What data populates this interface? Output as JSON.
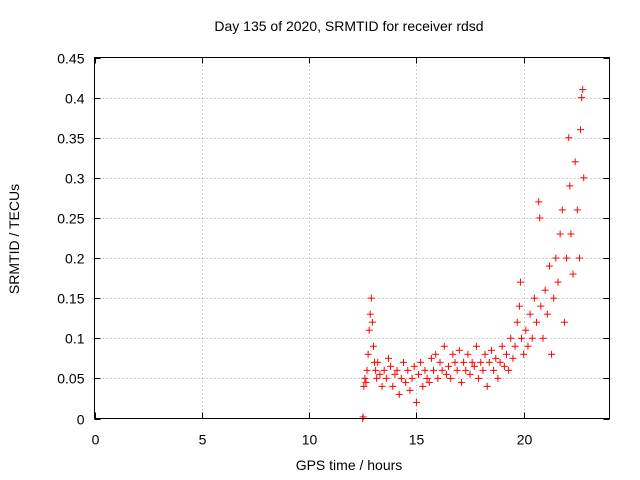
{
  "chart_data": {
    "type": "scatter",
    "title": "Day 135 of 2020, SRMTID for receiver rdsd",
    "xlabel": "GPS time / hours",
    "ylabel": "SRMTID / TECUs",
    "xlim": [
      0,
      24
    ],
    "ylim": [
      0,
      0.45
    ],
    "xticks": [
      0,
      5,
      10,
      15,
      20
    ],
    "xtick_labels": [
      "0",
      "5",
      "10",
      "15",
      "20"
    ],
    "yticks": [
      0,
      0.05,
      0.1,
      0.15,
      0.2,
      0.25,
      0.3,
      0.35,
      0.4,
      0.45
    ],
    "ytick_labels": [
      "0",
      "0.05",
      "0.1",
      "0.15",
      "0.2",
      "0.25",
      "0.3",
      "0.35",
      "0.4",
      "0.45"
    ],
    "grid": true,
    "marker": "+",
    "color": "#ff0000",
    "series": [
      {
        "name": "SRMTID",
        "points": [
          [
            12.5,
            0.0
          ],
          [
            12.52,
            0.002
          ],
          [
            12.55,
            0.04
          ],
          [
            12.6,
            0.05
          ],
          [
            12.65,
            0.045
          ],
          [
            12.7,
            0.06
          ],
          [
            12.75,
            0.08
          ],
          [
            12.8,
            0.11
          ],
          [
            12.85,
            0.13
          ],
          [
            12.9,
            0.15
          ],
          [
            12.95,
            0.12
          ],
          [
            13.0,
            0.09
          ],
          [
            13.05,
            0.07
          ],
          [
            13.1,
            0.06
          ],
          [
            13.15,
            0.05
          ],
          [
            13.2,
            0.07
          ],
          [
            13.3,
            0.055
          ],
          [
            13.4,
            0.04
          ],
          [
            13.5,
            0.06
          ],
          [
            13.6,
            0.05
          ],
          [
            13.7,
            0.075
          ],
          [
            13.8,
            0.065
          ],
          [
            13.9,
            0.04
          ],
          [
            14.0,
            0.055
          ],
          [
            14.1,
            0.06
          ],
          [
            14.2,
            0.03
          ],
          [
            14.3,
            0.05
          ],
          [
            14.4,
            0.07
          ],
          [
            14.5,
            0.045
          ],
          [
            14.6,
            0.06
          ],
          [
            14.7,
            0.035
          ],
          [
            14.8,
            0.05
          ],
          [
            14.9,
            0.065
          ],
          [
            15.0,
            0.02
          ],
          [
            15.1,
            0.055
          ],
          [
            15.2,
            0.07
          ],
          [
            15.3,
            0.04
          ],
          [
            15.4,
            0.06
          ],
          [
            15.5,
            0.05
          ],
          [
            15.6,
            0.045
          ],
          [
            15.7,
            0.075
          ],
          [
            15.8,
            0.06
          ],
          [
            15.9,
            0.08
          ],
          [
            16.0,
            0.05
          ],
          [
            16.1,
            0.07
          ],
          [
            16.2,
            0.06
          ],
          [
            16.3,
            0.09
          ],
          [
            16.4,
            0.055
          ],
          [
            16.5,
            0.065
          ],
          [
            16.6,
            0.05
          ],
          [
            16.7,
            0.08
          ],
          [
            16.8,
            0.07
          ],
          [
            16.9,
            0.06
          ],
          [
            17.0,
            0.085
          ],
          [
            17.1,
            0.045
          ],
          [
            17.2,
            0.07
          ],
          [
            17.3,
            0.06
          ],
          [
            17.4,
            0.08
          ],
          [
            17.5,
            0.055
          ],
          [
            17.6,
            0.07
          ],
          [
            17.7,
            0.065
          ],
          [
            17.8,
            0.09
          ],
          [
            17.9,
            0.05
          ],
          [
            18.0,
            0.07
          ],
          [
            18.1,
            0.06
          ],
          [
            18.2,
            0.08
          ],
          [
            18.3,
            0.04
          ],
          [
            18.4,
            0.07
          ],
          [
            18.5,
            0.085
          ],
          [
            18.6,
            0.06
          ],
          [
            18.7,
            0.075
          ],
          [
            18.8,
            0.05
          ],
          [
            18.9,
            0.07
          ],
          [
            19.0,
            0.09
          ],
          [
            19.1,
            0.065
          ],
          [
            19.2,
            0.08
          ],
          [
            19.3,
            0.06
          ],
          [
            19.4,
            0.1
          ],
          [
            19.5,
            0.075
          ],
          [
            19.6,
            0.09
          ],
          [
            19.7,
            0.12
          ],
          [
            19.8,
            0.14
          ],
          [
            19.85,
            0.17
          ],
          [
            19.9,
            0.1
          ],
          [
            20.0,
            0.08
          ],
          [
            20.1,
            0.11
          ],
          [
            20.2,
            0.09
          ],
          [
            20.3,
            0.13
          ],
          [
            20.4,
            0.1
          ],
          [
            20.5,
            0.15
          ],
          [
            20.6,
            0.12
          ],
          [
            20.7,
            0.27
          ],
          [
            20.75,
            0.25
          ],
          [
            20.8,
            0.14
          ],
          [
            20.9,
            0.1
          ],
          [
            21.0,
            0.16
          ],
          [
            21.1,
            0.13
          ],
          [
            21.2,
            0.19
          ],
          [
            21.3,
            0.08
          ],
          [
            21.4,
            0.15
          ],
          [
            21.5,
            0.2
          ],
          [
            21.6,
            0.17
          ],
          [
            21.7,
            0.23
          ],
          [
            21.8,
            0.26
          ],
          [
            21.9,
            0.12
          ],
          [
            22.0,
            0.2
          ],
          [
            22.1,
            0.35
          ],
          [
            22.15,
            0.29
          ],
          [
            22.2,
            0.23
          ],
          [
            22.3,
            0.18
          ],
          [
            22.4,
            0.32
          ],
          [
            22.5,
            0.26
          ],
          [
            22.6,
            0.2
          ],
          [
            22.65,
            0.36
          ],
          [
            22.7,
            0.4
          ],
          [
            22.75,
            0.41
          ],
          [
            22.8,
            0.3
          ]
        ]
      }
    ]
  }
}
